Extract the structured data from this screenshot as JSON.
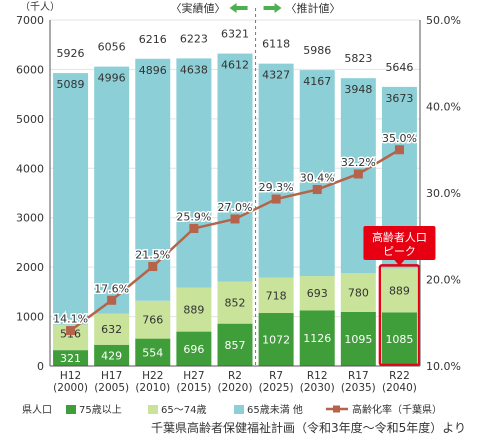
{
  "chart_data": {
    "type": "bar",
    "stacked": true,
    "categories": [
      {
        "era": "H12",
        "year": "(2000)"
      },
      {
        "era": "H17",
        "year": "(2005)"
      },
      {
        "era": "H22",
        "year": "(2010)"
      },
      {
        "era": "H27",
        "year": "(2015)"
      },
      {
        "era": "R2",
        "year": "(2020)"
      },
      {
        "era": "R7",
        "year": "(2025)"
      },
      {
        "era": "R12",
        "year": "(2030)"
      },
      {
        "era": "R17",
        "year": "(2035)"
      },
      {
        "era": "R22",
        "year": "(2040)"
      }
    ],
    "series": [
      {
        "name": "75歳以上",
        "key": "age75",
        "color": "#3f9d3a",
        "values": [
          321,
          429,
          554,
          696,
          857,
          1072,
          1126,
          1095,
          1085
        ]
      },
      {
        "name": "65〜74歳",
        "key": "age65",
        "color": "#c9e39b",
        "values": [
          516,
          632,
          766,
          889,
          852,
          718,
          693,
          780,
          889
        ]
      },
      {
        "name": "65歳未満 他",
        "key": "under65",
        "color": "#8dcfd6",
        "values": [
          5089,
          4996,
          4896,
          4638,
          4612,
          4327,
          4167,
          3948,
          3673
        ]
      }
    ],
    "totals": [
      5926,
      6056,
      6216,
      6223,
      6321,
      6118,
      5986,
      5823,
      5646
    ],
    "line_series": {
      "name": "高齢化率（千葉県）",
      "color": "#b5634a",
      "labels": [
        "14.1%",
        "17.6%",
        "21.5%",
        "25.9%",
        "27.0%",
        "29.3%",
        "30.4%",
        "32.2%",
        "35.0%"
      ],
      "values": [
        14.1,
        17.6,
        21.5,
        25.9,
        27.0,
        29.3,
        30.4,
        32.2,
        35.0
      ]
    },
    "y_left": {
      "unit_label": "（千人）",
      "min": 0,
      "max": 7000,
      "ticks": [
        "0",
        "1000",
        "2000",
        "3000",
        "4000",
        "5000",
        "6000",
        "7000"
      ]
    },
    "y_right": {
      "min": 10,
      "max": 50,
      "ticks": [
        "10.0%",
        "20.0%",
        "30.0%",
        "40.0%",
        "50.0%"
      ]
    },
    "period_labels": {
      "actual": "〈実績値〉",
      "projected": "〈推計値〉"
    },
    "annotation": {
      "text_line1": "高齢者人口",
      "text_line2": "ピーク",
      "target_index": 8
    },
    "legend_title": "県人口",
    "source": "千葉県高齢者保健福祉計画（令和3年度〜令和5年度）より",
    "colors": {
      "background": "#ffffff",
      "axis": "#555555",
      "grid": "#e3e3e3",
      "arrow": "#4caf50",
      "highlight": "#e60012"
    },
    "legend_placement": "bottom"
  }
}
